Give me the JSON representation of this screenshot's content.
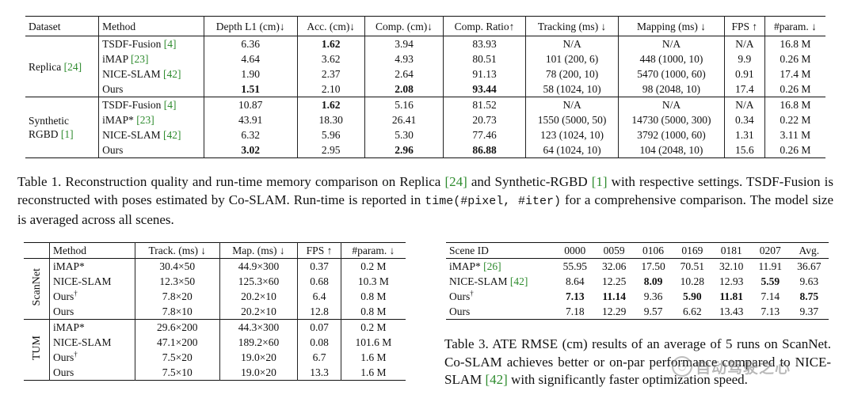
{
  "table1": {
    "headers": [
      "Dataset",
      "Method",
      "Depth L1 (cm)↓",
      "Acc. (cm)↓",
      "Comp. (cm)↓",
      "Comp. Ratio↑",
      "Tracking (ms) ↓",
      "Mapping (ms) ↓",
      "FPS ↑",
      "#param. ↓"
    ],
    "groups": [
      {
        "dataset_line1": "Replica",
        "dataset_line2": "",
        "dataset_cite": "[24]",
        "rows": [
          {
            "method": "TSDF-Fusion",
            "cite": "[4]",
            "cells": [
              "6.36",
              "1.62",
              "3.94",
              "83.93",
              "N/A",
              "N/A",
              "N/A",
              "16.8 M"
            ],
            "bold": [
              1
            ]
          },
          {
            "method": "iMAP",
            "cite": "[23]",
            "cells": [
              "4.64",
              "3.62",
              "4.93",
              "80.51",
              "101 (200, 6)",
              "448 (1000, 10)",
              "9.9",
              "0.26 M"
            ],
            "bold": []
          },
          {
            "method": "NICE-SLAM",
            "cite": "[42]",
            "cells": [
              "1.90",
              "2.37",
              "2.64",
              "91.13",
              "78 (200, 10)",
              "5470 (1000, 60)",
              "0.91",
              "17.4 M"
            ],
            "bold": []
          },
          {
            "method": "Ours",
            "cite": "",
            "cells": [
              "1.51",
              "2.10",
              "2.08",
              "93.44",
              "58 (1024, 10)",
              "98 (2048, 10)",
              "17.4",
              "0.26 M"
            ],
            "bold": [
              0,
              2,
              3
            ]
          }
        ]
      },
      {
        "dataset_line1": "Synthetic",
        "dataset_line2": "RGBD",
        "dataset_cite": "[1]",
        "rows": [
          {
            "method": "TSDF-Fusion",
            "cite": "[4]",
            "cells": [
              "10.87",
              "1.62",
              "5.16",
              "81.52",
              "N/A",
              "N/A",
              "N/A",
              "16.8 M"
            ],
            "bold": [
              1
            ]
          },
          {
            "method": "iMAP*",
            "cite": "[23]",
            "cells": [
              "43.91",
              "18.30",
              "26.41",
              "20.73",
              "1550 (5000, 50)",
              "14730 (5000, 300)",
              "0.34",
              "0.22 M"
            ],
            "bold": []
          },
          {
            "method": "NICE-SLAM",
            "cite": "[42]",
            "cells": [
              "6.32",
              "5.96",
              "5.30",
              "77.46",
              "123 (1024, 10)",
              "3792 (1000, 60)",
              "1.31",
              "3.11 M"
            ],
            "bold": []
          },
          {
            "method": "Ours",
            "cite": "",
            "cells": [
              "3.02",
              "2.95",
              "2.96",
              "86.88",
              "64 (1024, 10)",
              "104 (2048, 10)",
              "15.6",
              "0.26 M"
            ],
            "bold": [
              0,
              2,
              3
            ]
          }
        ]
      }
    ]
  },
  "caption1": {
    "p1": "Table 1. Reconstruction quality and run-time memory comparison on Replica ",
    "c1": "[24]",
    "p2": " and Synthetic-RGBD ",
    "c2": "[1]",
    "p3": " with respective settings. TSDF-Fusion is reconstructed with poses estimated by Co-SLAM. Run-time is reported in ",
    "code": "time(#pixel, #iter)",
    "p4": " for a comprehensive comparison. The model size is averaged across all scenes."
  },
  "table2": {
    "headers": [
      "Method",
      "Track. (ms) ↓",
      "Map. (ms) ↓",
      "FPS ↑",
      "#param. ↓"
    ],
    "groups": [
      {
        "label": "ScanNet",
        "rows": [
          {
            "method": "iMAP*",
            "dagger": "",
            "cells": [
              "30.4×50",
              "44.9×300",
              "0.37",
              "0.2 M"
            ]
          },
          {
            "method": "NICE-SLAM",
            "dagger": "",
            "cells": [
              "12.3×50",
              "125.3×60",
              "0.68",
              "10.3 M"
            ]
          },
          {
            "method": "Ours",
            "dagger": "†",
            "cells": [
              "7.8×20",
              "20.2×10",
              "6.4",
              "0.8 M"
            ]
          },
          {
            "method": "Ours",
            "dagger": "",
            "cells": [
              "7.8×10",
              "20.2×10",
              "12.8",
              "0.8 M"
            ]
          }
        ]
      },
      {
        "label": "TUM",
        "rows": [
          {
            "method": "iMAP*",
            "dagger": "",
            "cells": [
              "29.6×200",
              "44.3×300",
              "0.07",
              "0.2 M"
            ]
          },
          {
            "method": "NICE-SLAM",
            "dagger": "",
            "cells": [
              "47.1×200",
              "189.2×60",
              "0.08",
              "101.6 M"
            ]
          },
          {
            "method": "Ours",
            "dagger": "†",
            "cells": [
              "7.5×20",
              "19.0×20",
              "6.7",
              "1.6 M"
            ]
          },
          {
            "method": "Ours",
            "dagger": "",
            "cells": [
              "7.5×10",
              "19.0×20",
              "13.3",
              "1.6 M"
            ]
          }
        ]
      }
    ]
  },
  "table3": {
    "headers": [
      "Scene ID",
      "0000",
      "0059",
      "0106",
      "0169",
      "0181",
      "0207",
      "Avg."
    ],
    "rows": [
      {
        "method": "iMAP*",
        "cite": "[26]",
        "dagger": "",
        "cells": [
          "55.95",
          "32.06",
          "17.50",
          "70.51",
          "32.10",
          "11.91",
          "36.67"
        ],
        "bold": []
      },
      {
        "method": "NICE-SLAM",
        "cite": "[42]",
        "dagger": "",
        "cells": [
          "8.64",
          "12.25",
          "8.09",
          "10.28",
          "12.93",
          "5.59",
          "9.63"
        ],
        "bold": [
          2,
          5
        ]
      },
      {
        "method": "Ours",
        "cite": "",
        "dagger": "†",
        "cells": [
          "7.13",
          "11.14",
          "9.36",
          "5.90",
          "11.81",
          "7.14",
          "8.75"
        ],
        "bold": [
          0,
          1,
          3,
          4,
          6
        ]
      },
      {
        "method": "Ours",
        "cite": "",
        "dagger": "",
        "cells": [
          "7.18",
          "12.29",
          "9.57",
          "6.62",
          "13.43",
          "7.13",
          "9.37"
        ],
        "bold": []
      }
    ]
  },
  "caption3": {
    "p1": "Table 3. ATE RMSE (cm) results of an average of 5 runs on ScanNet. Co-SLAM achieves better or on-par performance compared to NICE-SLAM ",
    "c1": "[42]",
    "p2": " with significantly faster optimization speed."
  },
  "watermark": {
    "text": "自动驾驶之心"
  }
}
